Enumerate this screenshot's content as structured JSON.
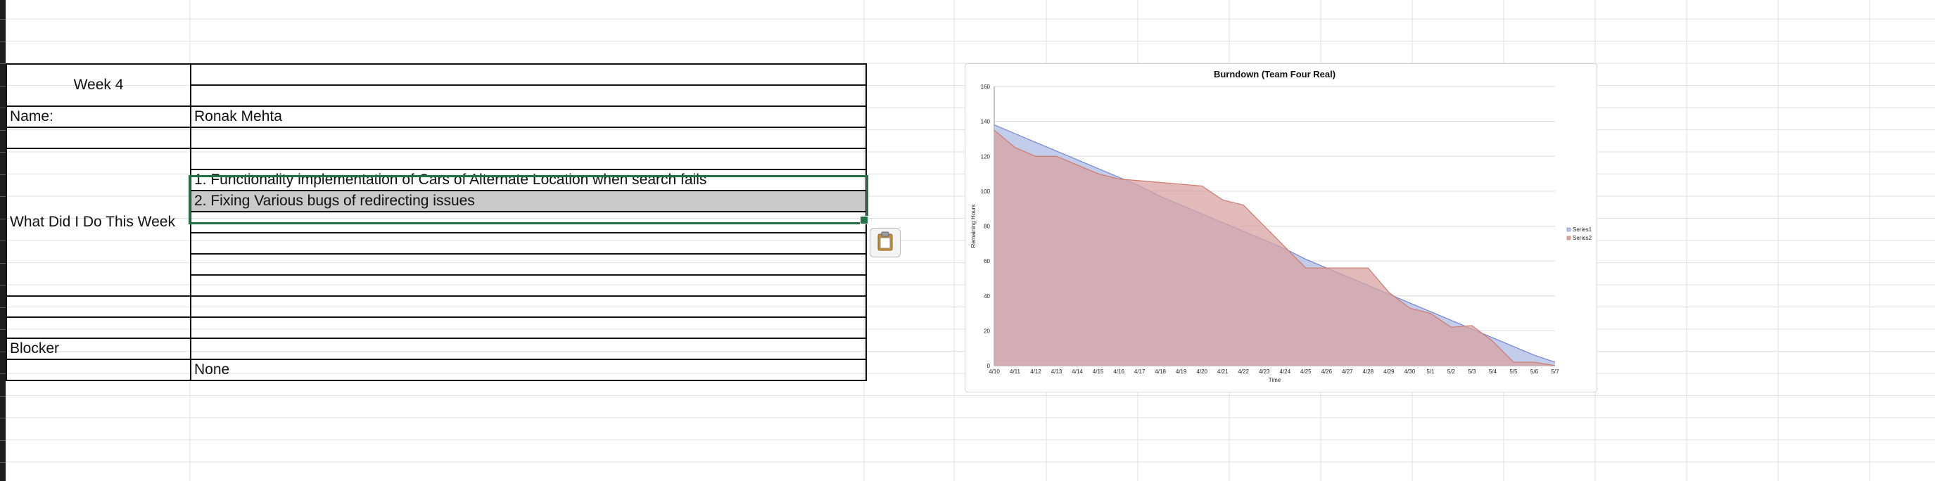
{
  "sheet": {
    "week": "Week 4",
    "name_label": "Name:",
    "name_value": "Ronak Mehta",
    "what_label": "What Did I Do This Week",
    "tasks": [
      "1. Functionality implementation of Cars of Alternate Location when search fails",
      "2. Fixing Various bugs of redirecting issues"
    ],
    "blocker_label": "Blocker",
    "blocker_value": "None"
  },
  "icons": {
    "paste": "clipboard-icon"
  },
  "colors": {
    "selection": "#217346",
    "series1_fill": "#b7c3e8",
    "series1_line": "#6f86d6",
    "series2_fill": "#d8a3a3",
    "series2_line": "#d07a6a"
  },
  "chart_data": {
    "type": "area",
    "title": "Burndown (Team Four Real)",
    "xlabel": "Time",
    "ylabel": "Remaining Hours",
    "ylim": [
      0,
      160
    ],
    "yticks": [
      0,
      20,
      40,
      60,
      80,
      100,
      120,
      140,
      160
    ],
    "grid": true,
    "legend": "right",
    "categories": [
      "4/10",
      "4/11",
      "4/12",
      "4/13",
      "4/14",
      "4/15",
      "4/16",
      "4/17",
      "4/18",
      "4/19",
      "4/20",
      "4/21",
      "4/22",
      "4/23",
      "4/24",
      "4/25",
      "4/26",
      "4/27",
      "4/28",
      "4/29",
      "4/30",
      "5/1",
      "5/2",
      "5/3",
      "5/4",
      "5/5",
      "5/6",
      "5/7"
    ],
    "series": [
      {
        "name": "Series1",
        "values": [
          138,
          133,
          128,
          123,
          118,
          113,
          108,
          103,
          97,
          92,
          87,
          82,
          77,
          72,
          67,
          61,
          56,
          51,
          46,
          41,
          36,
          31,
          26,
          21,
          16,
          11,
          6,
          2
        ]
      },
      {
        "name": "Series2",
        "values": [
          135,
          125,
          120,
          120,
          115,
          110,
          107,
          106,
          105,
          104,
          103,
          95,
          92,
          80,
          68,
          56,
          56,
          56,
          56,
          42,
          33,
          30,
          22,
          23,
          14,
          2,
          2,
          0
        ]
      }
    ]
  }
}
